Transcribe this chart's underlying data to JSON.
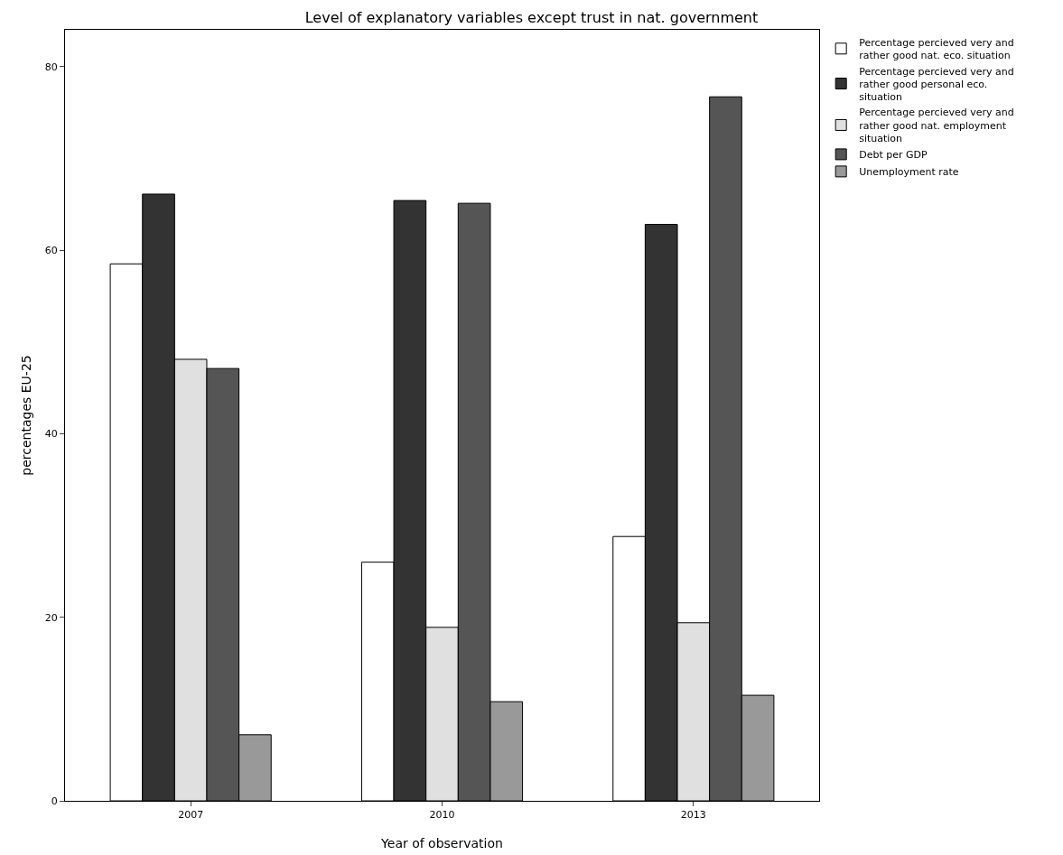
{
  "chart_data": {
    "type": "bar",
    "title": "Level of explanatory variables except trust in nat. government",
    "xlabel": "Year of observation",
    "ylabel": "percentages EU-25",
    "categories": [
      "2007",
      "2010",
      "2013"
    ],
    "series": [
      {
        "name": "Percentage percieved very and rather good nat. eco. situation",
        "color": "#ffffff",
        "values": [
          58.5,
          26.0,
          28.8
        ]
      },
      {
        "name": "Percentage percieved very and rather good personal eco. situation",
        "color": "#333333",
        "values": [
          66.1,
          65.4,
          62.8
        ]
      },
      {
        "name": "Percentage percieved very and rather good nat. employment situation",
        "color": "#e0e0e0",
        "values": [
          48.1,
          18.9,
          19.4
        ]
      },
      {
        "name": "Debt per GDP",
        "color": "#555555",
        "values": [
          47.1,
          65.1,
          76.7
        ]
      },
      {
        "name": "Unemployment rate",
        "color": "#999999",
        "values": [
          7.2,
          10.8,
          11.5
        ]
      }
    ],
    "ylim": [
      0,
      84
    ],
    "yticks": [
      0,
      20,
      40,
      60,
      80
    ],
    "grid": false,
    "legend": "top right"
  }
}
